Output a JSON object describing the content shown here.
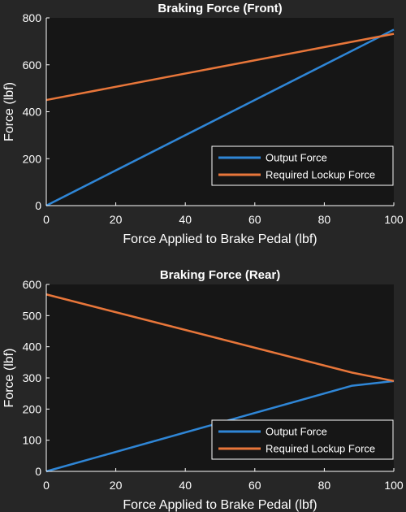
{
  "colors": {
    "figure_bg": "#262626",
    "axes_bg": "#161616",
    "text": "#ffffff",
    "output_force": "#2f86d6",
    "required_lockup_force": "#e8763a"
  },
  "chart_data": [
    {
      "type": "line",
      "title": "Braking Force (Front)",
      "xlabel": "Force Applied to Brake Pedal (lbf)",
      "ylabel": "Force (lbf)",
      "xlim": [
        0,
        100
      ],
      "ylim": [
        0,
        800
      ],
      "xticks": [
        "0",
        "20",
        "40",
        "60",
        "80",
        "100"
      ],
      "yticks": [
        "0",
        "200",
        "400",
        "600",
        "800"
      ],
      "grid": false,
      "legend": "bottom-right",
      "series": [
        {
          "name": "Output Force",
          "color": "#2f86d6",
          "x": [
            0,
            100
          ],
          "y": [
            0,
            750
          ]
        },
        {
          "name": "Required Lockup Force",
          "color": "#e8763a",
          "x": [
            0,
            100
          ],
          "y": [
            450,
            732
          ]
        }
      ]
    },
    {
      "type": "line",
      "title": "Braking Force (Rear)",
      "xlabel": "Force Applied to Brake Pedal (lbf)",
      "ylabel": "Force (lbf)",
      "xlim": [
        0,
        100
      ],
      "ylim": [
        0,
        600
      ],
      "xticks": [
        "0",
        "20",
        "40",
        "60",
        "80",
        "100"
      ],
      "yticks": [
        "0",
        "100",
        "200",
        "300",
        "400",
        "500",
        "600"
      ],
      "grid": false,
      "legend": "bottom-right",
      "series": [
        {
          "name": "Output Force",
          "color": "#2f86d6",
          "x": [
            0,
            88,
            100
          ],
          "y": [
            0,
            275,
            290
          ]
        },
        {
          "name": "Required Lockup Force",
          "color": "#e8763a",
          "x": [
            0,
            88,
            100
          ],
          "y": [
            568,
            317,
            290
          ]
        }
      ]
    }
  ]
}
